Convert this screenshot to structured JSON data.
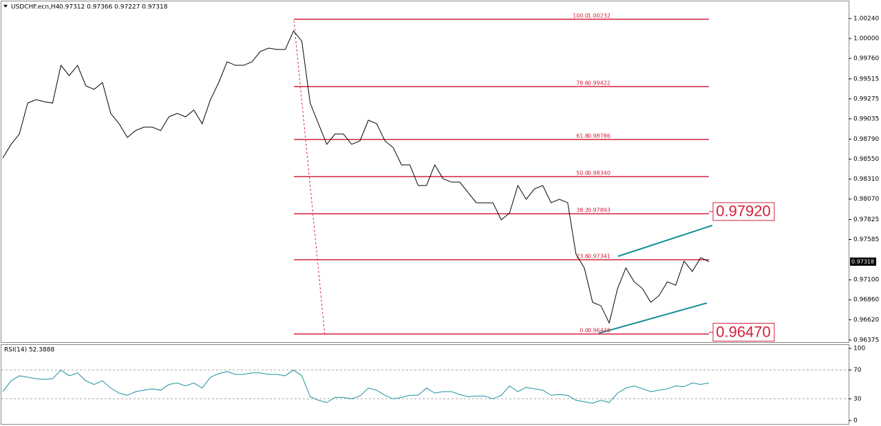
{
  "header": {
    "symbol": "USDCHF.ecn,H4",
    "ohlc": "0.97312 0.97366 0.97227 0.97318"
  },
  "chart_data": [
    {
      "type": "line",
      "color": "#000000",
      "values": [
        0.98563,
        0.98728,
        0.98852,
        0.99224,
        0.99265,
        0.99241,
        0.99224,
        0.99678,
        0.99554,
        0.99678,
        0.99431,
        0.99389,
        0.99472,
        0.991,
        0.98976,
        0.98811,
        0.98894,
        0.98935,
        0.98935,
        0.98894,
        0.99059,
        0.991,
        0.99059,
        0.99141,
        0.98976,
        0.99265,
        0.99472,
        0.9972,
        0.99678,
        0.99678,
        0.9972,
        0.99844,
        0.99885,
        0.99868,
        0.99868,
        1.00091,
        0.99967,
        0.99224,
        0.98976,
        0.98728,
        0.98852,
        0.98852,
        0.98728,
        0.9877,
        0.99018,
        0.98976,
        0.9877,
        0.98687,
        0.98481,
        0.98481,
        0.98233,
        0.98233,
        0.98481,
        0.98315,
        0.98274,
        0.98274,
        0.9815,
        0.98026,
        0.98026,
        0.98026,
        0.9782,
        0.97902,
        0.98233,
        0.98068,
        0.98192,
        0.98233,
        0.98026,
        0.98068,
        0.98026,
        0.97407,
        0.97242,
        0.96829,
        0.96787,
        0.96581,
        0.96994,
        0.97242,
        0.97076,
        0.96994,
        0.96829,
        0.96911,
        0.97076,
        0.97035,
        0.97324,
        0.972,
        0.97366,
        0.97318
      ],
      "ylim": [
        0.9635,
        1.00463
      ],
      "yticks": [
        {
          "value": 1.0024,
          "label": "1.00240"
        },
        {
          "value": 1.0,
          "label": "1.00000"
        },
        {
          "value": 0.9976,
          "label": "0.99760"
        },
        {
          "value": 0.99515,
          "label": "0.99515"
        },
        {
          "value": 0.99275,
          "label": "0.99275"
        },
        {
          "value": 0.99035,
          "label": "0.99035"
        },
        {
          "value": 0.9879,
          "label": "0.98790"
        },
        {
          "value": 0.9855,
          "label": "0.98550"
        },
        {
          "value": 0.9831,
          "label": "0.98310"
        },
        {
          "value": 0.9807,
          "label": "0.98070"
        },
        {
          "value": 0.97825,
          "label": "0.97825"
        },
        {
          "value": 0.97585,
          "label": "0.97585"
        },
        {
          "value": 0.971,
          "label": "0.97100"
        },
        {
          "value": 0.9686,
          "label": "0.96860"
        },
        {
          "value": 0.9662,
          "label": "0.96620"
        },
        {
          "value": 0.96375,
          "label": "0.96375"
        }
      ],
      "fib_levels": [
        {
          "ratio": "100.0",
          "price": {
            "value": 1.00232,
            "label": "1.00232"
          }
        },
        {
          "ratio": "78.6",
          "price": {
            "value": 0.99422,
            "label": "0.99422"
          }
        },
        {
          "ratio": "61.8",
          "price": {
            "value": 0.98786,
            "label": "0.98786"
          }
        },
        {
          "ratio": "50.0",
          "price": {
            "value": 0.9834,
            "label": "0.98340"
          }
        },
        {
          "ratio": "38.2",
          "price": {
            "value": 0.97893,
            "label": "0.97893"
          }
        },
        {
          "ratio": "23.6",
          "price": {
            "value": 0.97341,
            "label": "0.97341"
          }
        },
        {
          "ratio": "0.0",
          "price": {
            "value": 0.96448,
            "label": "0.96448"
          }
        }
      ],
      "current_price": 0.97318,
      "annotations": [
        {
          "value": 0.9792,
          "label": "0.97920"
        },
        {
          "value": 0.9647,
          "label": "0.96470"
        }
      ]
    },
    {
      "type": "line",
      "title": "RSI(14) 52.3888",
      "color": "#1a8fa0",
      "values": [
        40,
        55,
        62,
        60,
        58,
        57,
        58,
        70,
        62,
        66,
        55,
        50,
        55,
        45,
        38,
        35,
        40,
        42,
        44,
        42,
        50,
        52,
        48,
        52,
        45,
        60,
        65,
        68,
        64,
        64,
        66,
        66,
        64,
        64,
        62,
        70,
        62,
        33,
        28,
        25,
        32,
        32,
        30,
        34,
        45,
        42,
        35,
        30,
        32,
        35,
        35,
        45,
        38,
        40,
        40,
        36,
        33,
        34,
        34,
        30,
        35,
        48,
        40,
        46,
        44,
        42,
        35,
        36,
        35,
        28,
        26,
        24,
        28,
        25,
        38,
        45,
        48,
        44,
        40,
        42,
        44,
        48,
        47,
        52,
        50,
        52
      ],
      "ylim": [
        -5.7,
        104.8
      ],
      "yticks": [
        0,
        30,
        70,
        100
      ],
      "levels": [
        30,
        70
      ]
    }
  ]
}
